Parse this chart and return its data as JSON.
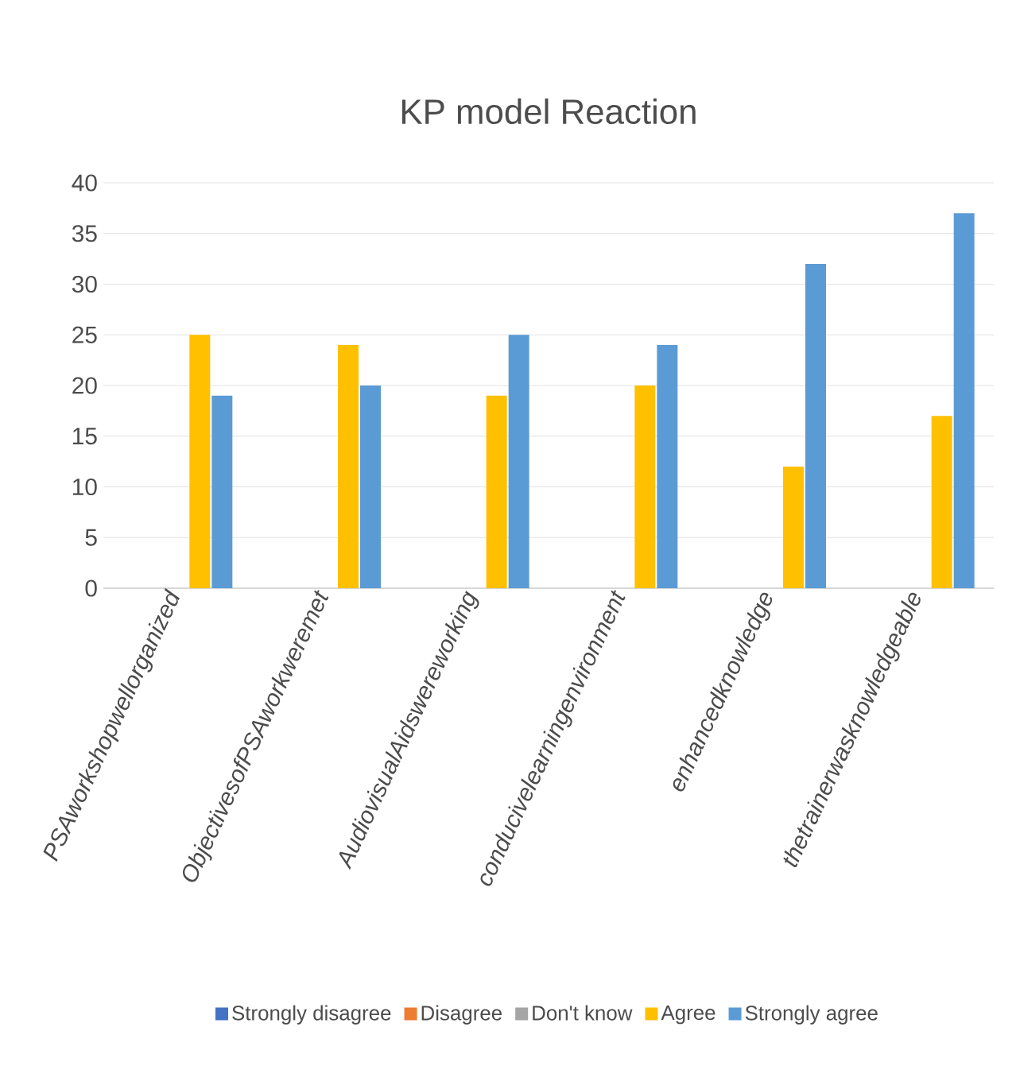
{
  "chart_data": {
    "type": "bar",
    "title": "KP model Reaction",
    "categories": [
      "PSAworkshopwellorganized",
      "ObjectivesofPSAworkweremet",
      "AudiovisualAidswereworking",
      "conducivelearningenvironment",
      "enhancedknowledge",
      "thetrainerwasknowledgeable"
    ],
    "series": [
      {
        "name": "Strongly disagree",
        "color": "#4472c4",
        "values": [
          0,
          0,
          0,
          0,
          0,
          0
        ]
      },
      {
        "name": "Disagree",
        "color": "#ed7d31",
        "values": [
          0,
          0,
          0,
          0,
          0,
          0
        ]
      },
      {
        "name": "Don't know",
        "color": "#a5a5a5",
        "values": [
          0,
          0,
          0,
          0,
          0,
          0
        ]
      },
      {
        "name": "Agree",
        "color": "#ffc000",
        "values": [
          25,
          24,
          19,
          20,
          12,
          17
        ]
      },
      {
        "name": "Strongly agree",
        "color": "#5b9bd5",
        "values": [
          19,
          20,
          25,
          24,
          32,
          37
        ]
      }
    ],
    "ylim": [
      0,
      40
    ],
    "yticks": [
      0,
      5,
      10,
      15,
      20,
      25,
      30,
      35,
      40
    ],
    "grid": "y",
    "legend": "bottom"
  }
}
